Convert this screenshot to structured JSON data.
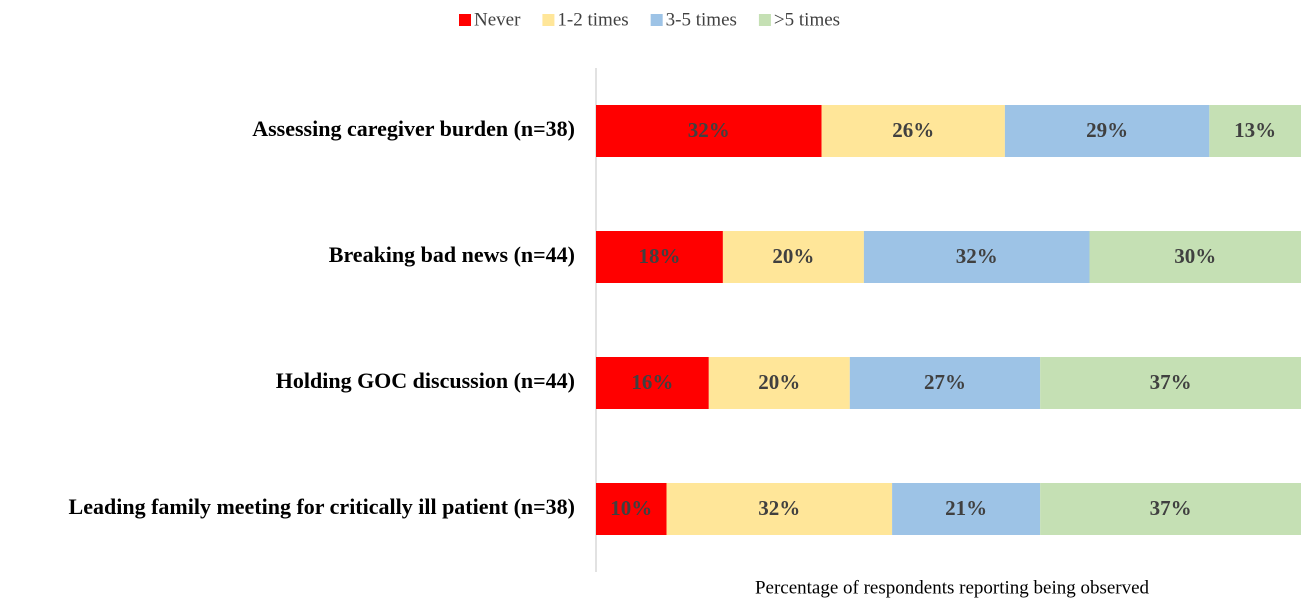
{
  "chart_data": {
    "type": "stacked_bar_horizontal",
    "x_axis_label": "Percentage of respondents reporting being observed",
    "categories": [
      "Assessing caregiver burden (n=38)",
      "Breaking bad news (n=44)",
      "Holding GOC discussion (n=44)",
      "Leading family meeting for critically ill patient (n=38)"
    ],
    "series": [
      {
        "name": "Never",
        "color": "#ff0000",
        "values": [
          32,
          18,
          16,
          10
        ],
        "value_labels": [
          "32%",
          "18%",
          "16%",
          "10%"
        ]
      },
      {
        "name": "1-2 times",
        "color": "#ffe699",
        "values": [
          26,
          20,
          20,
          32
        ],
        "value_labels": [
          "26%",
          "20%",
          "20%",
          "32%"
        ]
      },
      {
        "name": "3-5 times",
        "color": "#9dc3e6",
        "values": [
          29,
          32,
          27,
          21
        ],
        "value_labels": [
          "29%",
          "32%",
          "27%",
          "21%"
        ]
      },
      {
        "name": ">5 times",
        "color": "#c5e0b4",
        "values": [
          13,
          30,
          37,
          37
        ],
        "value_labels": [
          "13%",
          "30%",
          "37%",
          "37%"
        ]
      }
    ],
    "legend": "top"
  }
}
